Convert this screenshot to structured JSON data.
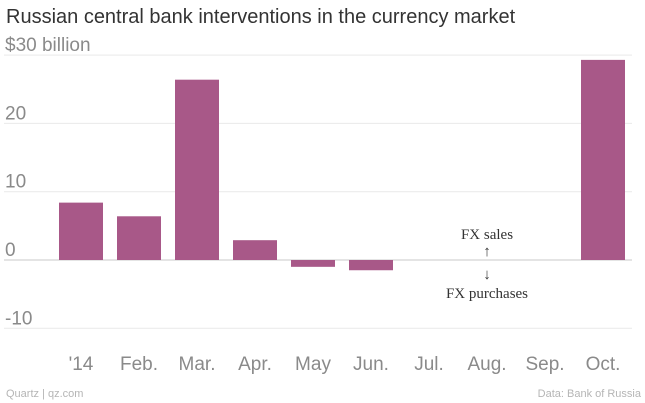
{
  "colors": {
    "bar": "#a85888",
    "grid": "#e9e9e9",
    "zero_line": "#c8c8c8",
    "tick": "#8a8a8a",
    "text": "#333333"
  },
  "chart_data": {
    "type": "bar",
    "title": "Russian central bank interventions in the currency market",
    "xlabel": "",
    "ylabel": "",
    "categories": [
      "'14",
      "Feb.",
      "Mar.",
      "Apr.",
      "May",
      "Jun.",
      "Jul.",
      "Aug.",
      "Sep.",
      "Oct."
    ],
    "values": [
      8.4,
      6.4,
      26.4,
      2.9,
      -1.0,
      -1.5,
      0,
      0,
      0,
      29.3
    ],
    "y_ticks": [
      -10,
      0,
      10,
      20,
      30
    ],
    "y_tick_labels": [
      "-10",
      "0",
      "10",
      "20",
      "$30 billion"
    ],
    "ylim": [
      -11,
      31
    ],
    "grid": true,
    "annotations": {
      "sales": "FX sales",
      "purchases": "FX purchases",
      "up_arrow": "↑",
      "down_arrow": "↓"
    }
  },
  "footer": {
    "left": "Quartz | qz.com",
    "right": "Data: Bank of Russia"
  }
}
